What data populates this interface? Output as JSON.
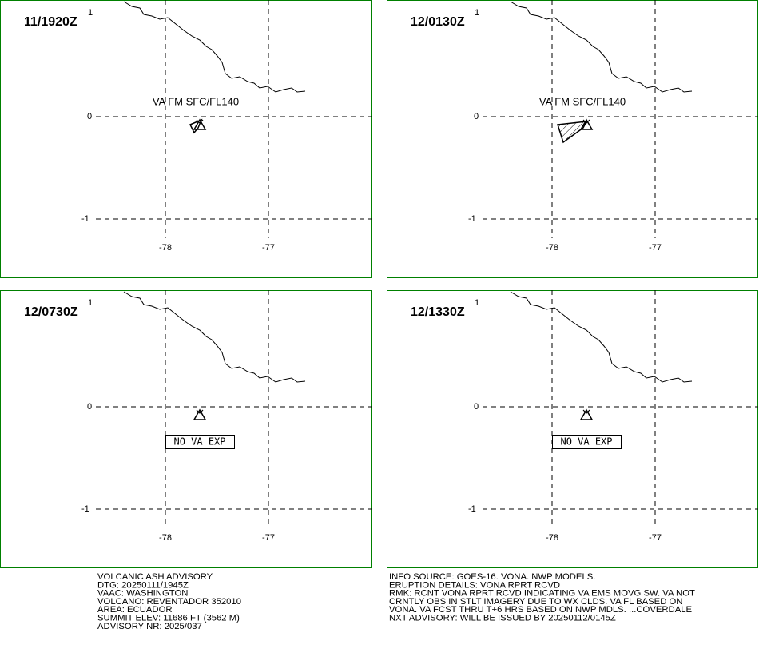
{
  "grid": {
    "lat": [
      "1",
      "0",
      "-1"
    ],
    "lon": [
      "-78",
      "-77"
    ]
  },
  "panels": [
    {
      "time": "11/1920Z",
      "annotation": "VA FM SFC/FL140"
    },
    {
      "time": "12/0130Z",
      "annotation": "VA FM SFC/FL140"
    },
    {
      "time": "12/0730Z",
      "note": "NO VA EXP"
    },
    {
      "time": "12/1330Z",
      "note": "NO VA EXP"
    }
  ],
  "advisory": {
    "left": [
      "VOLCANIC ASH ADVISORY",
      "DTG: 20250111/1945Z",
      "VAAC: WASHINGTON",
      "VOLCANO: REVENTADOR 352010",
      "AREA: ECUADOR",
      "SUMMIT ELEV: 11686 FT (3562 M)",
      "ADVISORY NR: 2025/037"
    ],
    "right": [
      "INFO SOURCE: GOES-16. VONA. NWP MODELS.",
      "ERUPTION DETAILS: VONA RPRT RCVD",
      "RMK: RCNT VONA RPRT RCVD INDICATING VA EMS MOVG SW. VA NOT",
      "CRNTLY OBS IN STLT IMAGERY DUE TO WX CLDS. VA FL BASED ON",
      "VONA. VA FCST THRU T+6 HRS BASED ON NWP MDLS. ...COVERDALE",
      "NXT ADVISORY: WILL BE ISSUED BY 20250112/0145Z"
    ]
  }
}
